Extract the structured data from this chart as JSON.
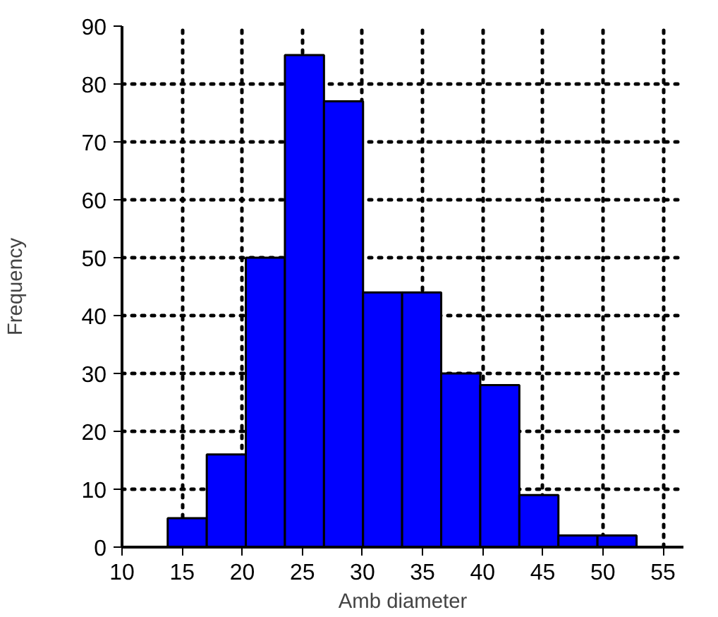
{
  "chart_data": {
    "type": "histogram",
    "xlabel": "Amb diameter",
    "ylabel": "Frequency",
    "bins": [
      13.8,
      17.05,
      20.3,
      23.55,
      26.8,
      30.05,
      33.3,
      36.55,
      39.8,
      43.05,
      46.3,
      49.55,
      52.8
    ],
    "values": [
      5,
      16,
      50,
      85,
      77,
      44,
      44,
      30,
      28,
      9,
      2,
      2
    ],
    "color": "#0000ff",
    "xlim": [
      10,
      56.7
    ],
    "ylim": [
      0,
      90
    ],
    "xticks": [
      10,
      15,
      20,
      25,
      30,
      35,
      40,
      45,
      50,
      55
    ],
    "yticks": [
      0,
      10,
      20,
      30,
      40,
      50,
      60,
      70,
      80,
      90
    ],
    "grid": true
  }
}
